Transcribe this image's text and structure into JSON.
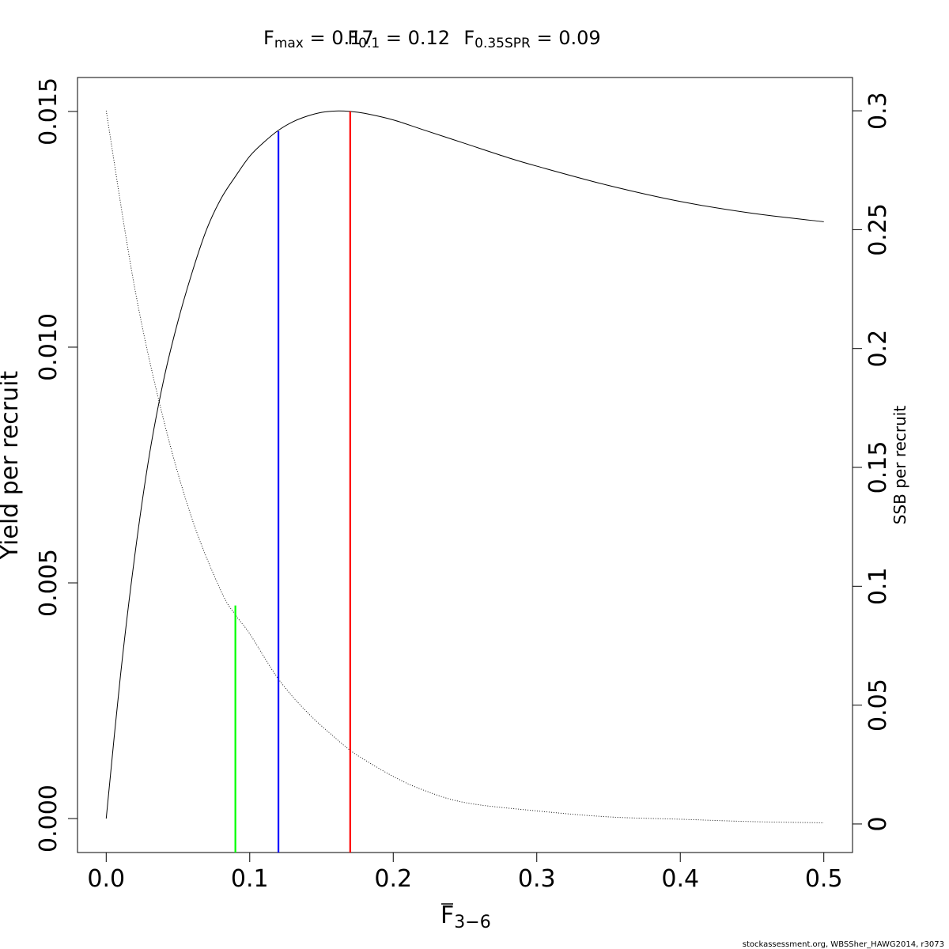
{
  "chart_data": {
    "type": "line",
    "title_parts": [
      {
        "base": "F",
        "sub": "max",
        "rest": " = 0.17"
      },
      {
        "base": "F",
        "sub": "0.1",
        "rest": " = 0.12"
      },
      {
        "base": "F",
        "sub": "0.35SPR",
        "rest": " = 0.09"
      }
    ],
    "xlabel": {
      "base": "F",
      "sub": "3−6"
    },
    "ylabel": "Yield per recruit",
    "y2label": "SSB per recruit",
    "xlim": [
      -0.02,
      0.52
    ],
    "ylim": [
      -0.00072,
      0.01572
    ],
    "y2lim": [
      -0.012,
      0.314
    ],
    "x_ticks": [
      {
        "value": 0.0,
        "label": "0.0"
      },
      {
        "value": 0.1,
        "label": "0.1"
      },
      {
        "value": 0.2,
        "label": "0.2"
      },
      {
        "value": 0.3,
        "label": "0.3"
      },
      {
        "value": 0.4,
        "label": "0.4"
      },
      {
        "value": 0.5,
        "label": "0.5"
      }
    ],
    "y_ticks": [
      {
        "value": 0.0,
        "label": "0.000"
      },
      {
        "value": 0.005,
        "label": "0.005"
      },
      {
        "value": 0.01,
        "label": "0.010"
      },
      {
        "value": 0.015,
        "label": "0.015"
      }
    ],
    "y2_ticks": [
      {
        "value": 0.0,
        "label": "0"
      },
      {
        "value": 0.05,
        "label": "0.05"
      },
      {
        "value": 0.1,
        "label": "0.1"
      },
      {
        "value": 0.15,
        "label": "0.15"
      },
      {
        "value": 0.2,
        "label": "0.2"
      },
      {
        "value": 0.25,
        "label": "0.25"
      },
      {
        "value": 0.3,
        "label": "0.3"
      }
    ],
    "series": [
      {
        "axis": "left",
        "style": "solid",
        "x": [
          0.0,
          0.01,
          0.02,
          0.03,
          0.04,
          0.05,
          0.06,
          0.07,
          0.08,
          0.09,
          0.1,
          0.11,
          0.12,
          0.13,
          0.14,
          0.15,
          0.16,
          0.17,
          0.18,
          0.2,
          0.22,
          0.25,
          0.28,
          0.3,
          0.35,
          0.4,
          0.45,
          0.5
        ],
        "y": [
          0.0,
          0.00305,
          0.0056,
          0.0077,
          0.0093,
          0.01055,
          0.0116,
          0.0125,
          0.01315,
          0.01362,
          0.01405,
          0.01435,
          0.0146,
          0.01478,
          0.0149,
          0.01498,
          0.01501,
          0.015,
          0.01496,
          0.01482,
          0.01462,
          0.01432,
          0.01402,
          0.01384,
          0.01343,
          0.01309,
          0.01284,
          0.01266
        ]
      },
      {
        "axis": "right",
        "style": "dotted",
        "x": [
          0.0,
          0.02,
          0.04,
          0.06,
          0.08,
          0.09,
          0.1,
          0.12,
          0.14,
          0.16,
          0.17,
          0.18,
          0.2,
          0.22,
          0.25,
          0.3,
          0.35,
          0.4,
          0.45,
          0.5
        ],
        "y": [
          0.3,
          0.225,
          0.17,
          0.128,
          0.098,
          0.088,
          0.08,
          0.061,
          0.047,
          0.036,
          0.031,
          0.027,
          0.02,
          0.0145,
          0.009,
          0.0055,
          0.003,
          0.002,
          0.001,
          0.0005
        ]
      }
    ],
    "reference_lines": [
      {
        "name": "Fmax",
        "x": 0.17,
        "y_top": 0.015,
        "color": "#ff0000"
      },
      {
        "name": "F0.1",
        "x": 0.12,
        "y_top": 0.01458,
        "color": "#0000ff"
      },
      {
        "name": "F0.35SPR",
        "x": 0.09,
        "y_top": 0.00452,
        "color": "#00ff00"
      }
    ],
    "grid": false,
    "legend": "none"
  },
  "footer_text": "stockassessment.org, WBSSher_HAWG2014, r3073"
}
